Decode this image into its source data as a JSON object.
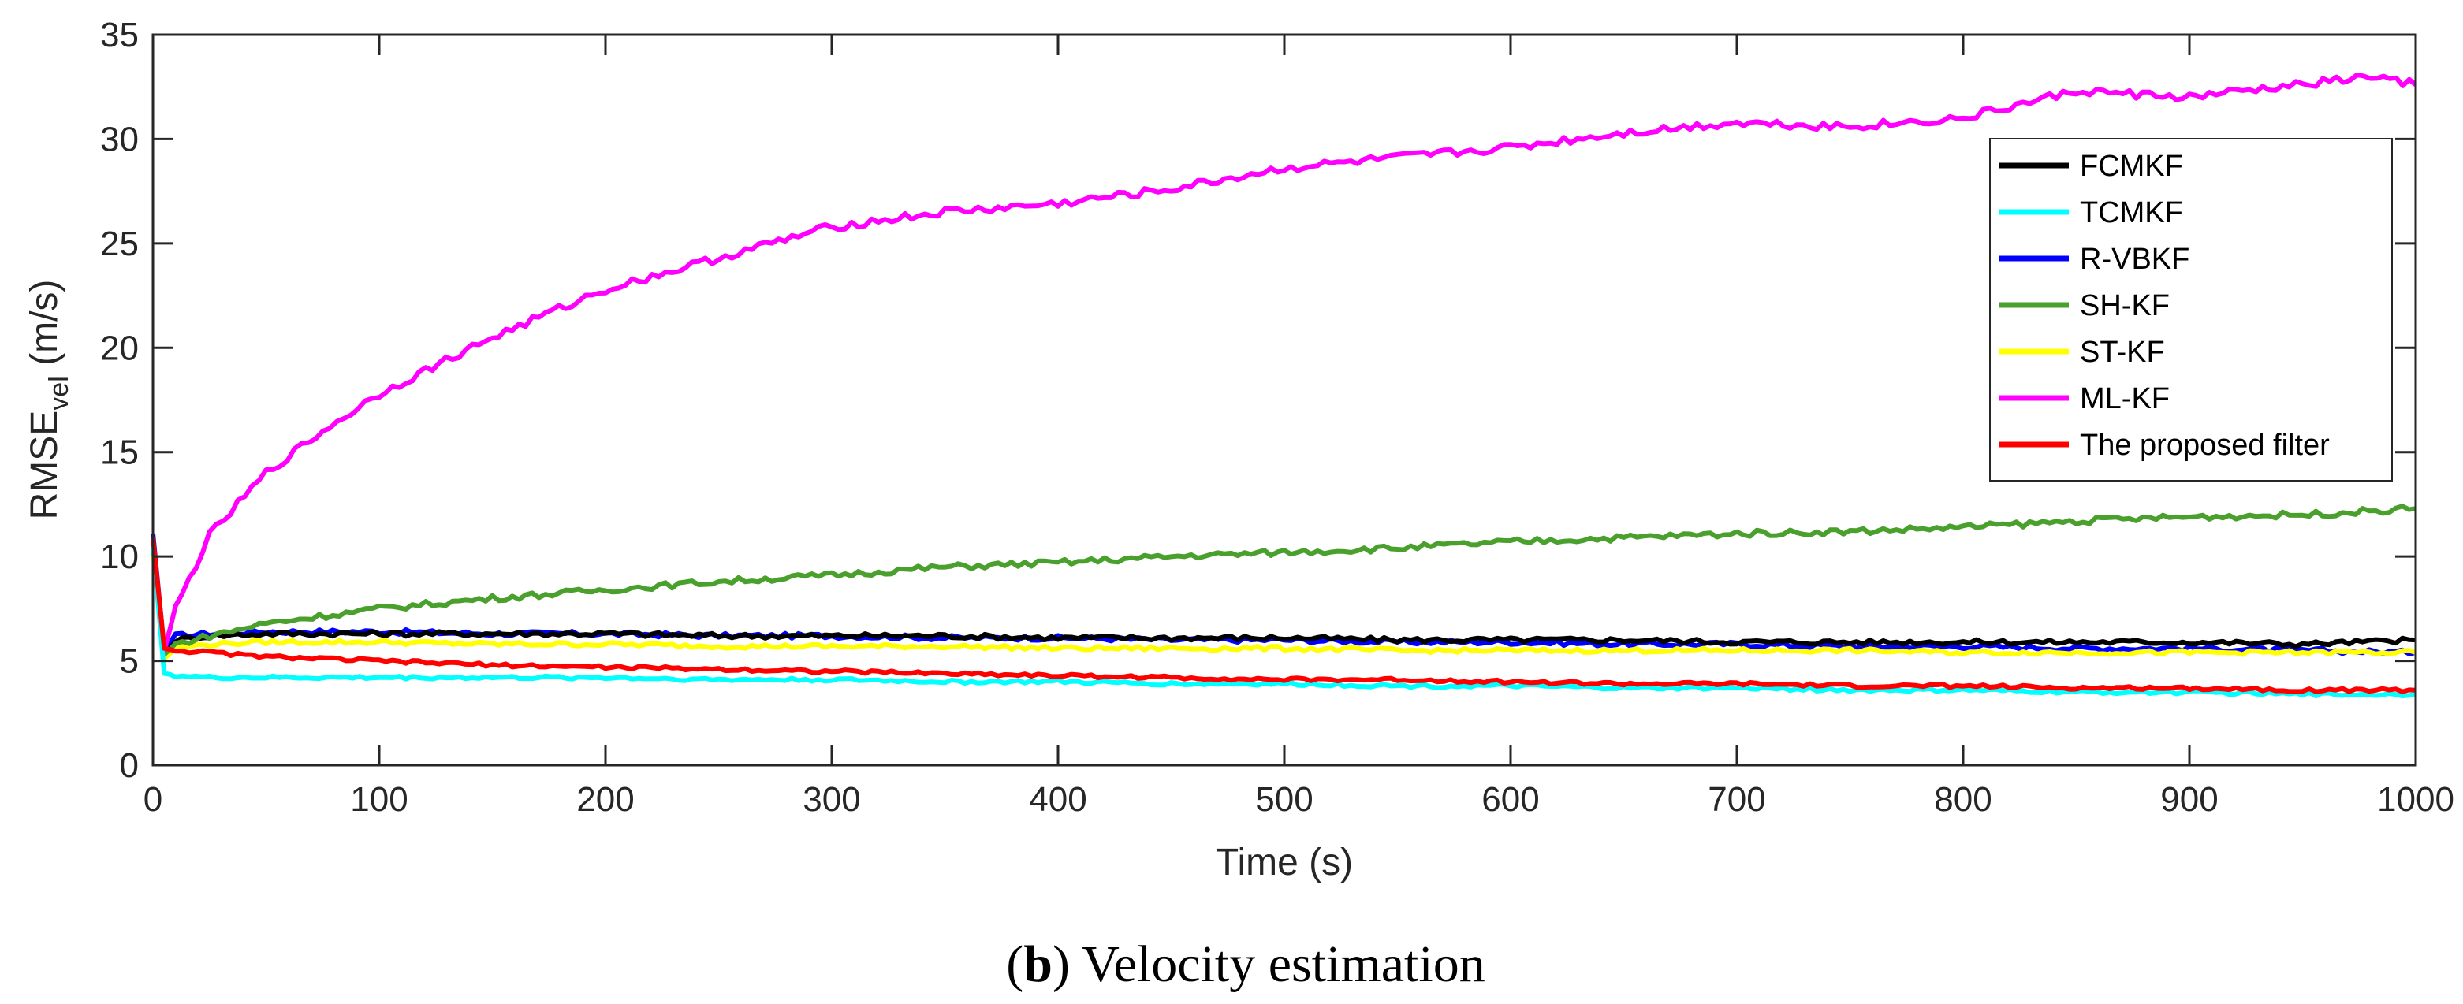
{
  "chart_data": {
    "type": "line",
    "xlabel": "Time (s)",
    "ylabel": {
      "main": "RMSE",
      "sub": "vel",
      "unit": " (m/s)"
    },
    "xlim": [
      0,
      1000
    ],
    "ylim": [
      0,
      35
    ],
    "xticks": [
      0,
      100,
      200,
      300,
      400,
      500,
      600,
      700,
      800,
      900,
      1000
    ],
    "yticks": [
      0,
      5,
      10,
      15,
      20,
      25,
      30,
      35
    ],
    "grid": false,
    "legend_position": "top-right",
    "caption": {
      "bold": "b",
      "text": " Velocity estimation"
    },
    "series": [
      {
        "name": "FCMKF",
        "color": "#000000",
        "x": [
          0,
          5,
          10,
          25,
          50,
          100,
          150,
          200,
          250,
          300,
          350,
          400,
          450,
          500,
          550,
          600,
          650,
          700,
          750,
          800,
          850,
          900,
          950,
          1000
        ],
        "y": [
          10.8,
          5.2,
          6.0,
          6.2,
          6.3,
          6.3,
          6.3,
          6.3,
          6.2,
          6.2,
          6.2,
          6.1,
          6.1,
          6.1,
          6.0,
          6.0,
          6.0,
          5.9,
          5.9,
          5.9,
          5.9,
          5.9,
          5.8,
          6.0
        ]
      },
      {
        "name": "TCMKF",
        "color": "#00FFFF",
        "x": [
          0,
          5,
          10,
          25,
          50,
          100,
          150,
          200,
          250,
          300,
          350,
          400,
          450,
          500,
          550,
          600,
          650,
          700,
          750,
          800,
          850,
          900,
          950,
          1000
        ],
        "y": [
          10.6,
          4.4,
          4.3,
          4.2,
          4.2,
          4.2,
          4.2,
          4.2,
          4.1,
          4.1,
          4.0,
          4.0,
          3.9,
          3.9,
          3.8,
          3.8,
          3.7,
          3.7,
          3.6,
          3.6,
          3.5,
          3.5,
          3.4,
          3.4
        ]
      },
      {
        "name": "R-VBKF",
        "color": "#0000FF",
        "x": [
          0,
          5,
          10,
          25,
          50,
          100,
          150,
          200,
          250,
          300,
          350,
          400,
          450,
          500,
          550,
          600,
          650,
          700,
          750,
          800,
          850,
          900,
          950,
          1000
        ],
        "y": [
          11.1,
          5.5,
          6.2,
          6.3,
          6.4,
          6.4,
          6.3,
          6.3,
          6.2,
          6.2,
          6.1,
          6.1,
          6.0,
          6.0,
          5.9,
          5.9,
          5.8,
          5.8,
          5.7,
          5.7,
          5.6,
          5.6,
          5.5,
          5.4
        ]
      },
      {
        "name": "SH-KF",
        "color": "#4AA02C",
        "x": [
          0,
          5,
          10,
          25,
          50,
          100,
          150,
          200,
          250,
          300,
          350,
          400,
          450,
          500,
          550,
          600,
          650,
          700,
          750,
          800,
          850,
          900,
          950,
          1000
        ],
        "y": [
          10.5,
          5.3,
          5.8,
          6.2,
          6.8,
          7.5,
          8.0,
          8.4,
          8.8,
          9.1,
          9.5,
          9.7,
          10.0,
          10.2,
          10.4,
          10.7,
          10.9,
          11.1,
          11.2,
          11.4,
          11.7,
          11.9,
          12.0,
          12.3
        ]
      },
      {
        "name": "ST-KF",
        "color": "#FFFF00",
        "x": [
          0,
          5,
          10,
          25,
          50,
          100,
          150,
          200,
          250,
          300,
          350,
          400,
          450,
          500,
          550,
          600,
          650,
          700,
          750,
          800,
          850,
          900,
          950,
          1000
        ],
        "y": [
          10.2,
          5.1,
          5.6,
          5.8,
          5.9,
          5.9,
          5.8,
          5.8,
          5.7,
          5.7,
          5.7,
          5.6,
          5.6,
          5.6,
          5.5,
          5.5,
          5.5,
          5.5,
          5.5,
          5.4,
          5.4,
          5.4,
          5.4,
          5.4
        ]
      },
      {
        "name": "ML-KF",
        "color": "#FF00FF",
        "x": [
          0,
          5,
          10,
          25,
          50,
          75,
          100,
          150,
          200,
          250,
          300,
          350,
          400,
          450,
          500,
          550,
          600,
          650,
          700,
          750,
          800,
          850,
          900,
          950,
          980,
          1000
        ],
        "y": [
          10.6,
          5.5,
          7.5,
          11.0,
          14.0,
          16.0,
          17.8,
          20.5,
          22.8,
          24.3,
          25.8,
          26.5,
          26.9,
          27.6,
          28.6,
          29.1,
          29.6,
          30.3,
          30.8,
          30.6,
          31.0,
          32.3,
          32.0,
          32.6,
          33.0,
          32.6
        ]
      },
      {
        "name": "The proposed filter",
        "color": "#FF0000",
        "x": [
          0,
          5,
          10,
          25,
          50,
          100,
          150,
          200,
          250,
          300,
          350,
          400,
          450,
          500,
          550,
          600,
          650,
          700,
          750,
          800,
          850,
          900,
          950,
          1000
        ],
        "y": [
          10.9,
          5.6,
          5.5,
          5.4,
          5.2,
          5.0,
          4.8,
          4.7,
          4.6,
          4.5,
          4.4,
          4.3,
          4.2,
          4.1,
          4.1,
          4.0,
          3.9,
          3.9,
          3.8,
          3.8,
          3.7,
          3.7,
          3.6,
          3.6
        ]
      }
    ]
  }
}
